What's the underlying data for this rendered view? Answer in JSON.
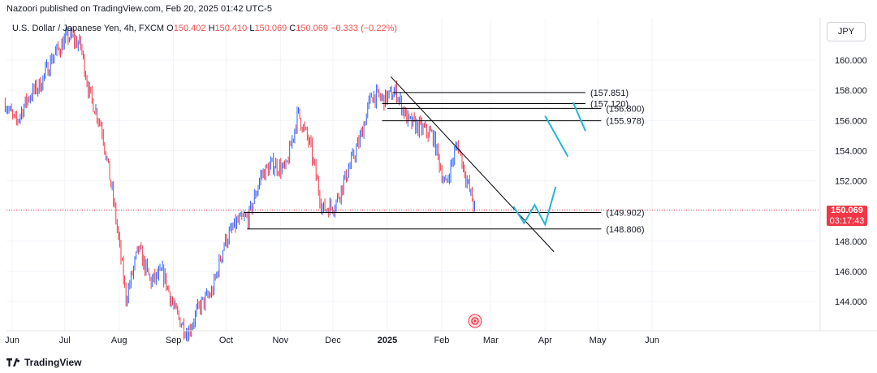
{
  "header": {
    "publisher_line": "Nazoori published on TradingView.com, Feb 20, 2025 01:42 UTC-5"
  },
  "symbol": {
    "name": "U.S. Dollar / Japanese Yen, 4h, FXCM",
    "open_label": "O",
    "open": "150.402",
    "high_label": "H",
    "high": "150.410",
    "low_label": "L",
    "low": "150.069",
    "close_label": "C",
    "close": "150.069",
    "change": "−0.333 (−0.22%)"
  },
  "currency_button": "JPY",
  "last_price": {
    "price": "150.069",
    "countdown": "03:17:43"
  },
  "footer": {
    "brand": "TradingView"
  },
  "colors": {
    "up": "#2962ff",
    "down": "#f23645",
    "pattern": "#22b7d6",
    "trendline": "#000000",
    "last_price_line": "#f23645"
  },
  "icons": {
    "logo": "tradingview-logo-icon",
    "event": "event-marker-icon"
  },
  "chart_data": {
    "type": "line",
    "title": "",
    "ylim": [
      142.0,
      162.5
    ],
    "y_ticks": [
      "160.000",
      "158.000",
      "156.000",
      "154.000",
      "152.000",
      "150.000",
      "148.000",
      "146.000",
      "144.000"
    ],
    "x_labels": [
      {
        "label": "Jun",
        "bold": false
      },
      {
        "label": "Jul",
        "bold": false
      },
      {
        "label": "Aug",
        "bold": false
      },
      {
        "label": "Sep",
        "bold": false
      },
      {
        "label": "Oct",
        "bold": false
      },
      {
        "label": "Nov",
        "bold": false
      },
      {
        "label": "Dec",
        "bold": false
      },
      {
        "label": "2025",
        "bold": true
      },
      {
        "label": "Feb",
        "bold": false
      },
      {
        "label": "Mar",
        "bold": false
      },
      {
        "label": "Apr",
        "bold": false
      },
      {
        "label": "May",
        "bold": false
      },
      {
        "label": "Jun",
        "bold": false
      }
    ],
    "series": [
      {
        "x": [
          "2024-05-28",
          "2024-06-03",
          "2024-06-10",
          "2024-06-17",
          "2024-06-24",
          "2024-07-03",
          "2024-07-10",
          "2024-07-15",
          "2024-07-22",
          "2024-07-29",
          "2024-08-05",
          "2024-08-12",
          "2024-08-19",
          "2024-08-26",
          "2024-09-02",
          "2024-09-09",
          "2024-09-16",
          "2024-09-23",
          "2024-09-30",
          "2024-10-07",
          "2024-10-14",
          "2024-10-21",
          "2024-10-28",
          "2024-11-04",
          "2024-11-11",
          "2024-11-18",
          "2024-11-25",
          "2024-12-02",
          "2024-12-09",
          "2024-12-16",
          "2024-12-23",
          "2024-12-30",
          "2025-01-06",
          "2025-01-13",
          "2025-01-20",
          "2025-01-27",
          "2025-02-03",
          "2025-02-10",
          "2025-02-17",
          "2025-02-20"
        ],
        "y": [
          157.2,
          155.8,
          157.5,
          158.4,
          160.2,
          161.6,
          161.0,
          157.8,
          155.6,
          150.5,
          144.2,
          147.5,
          145.3,
          145.9,
          143.3,
          141.9,
          143.7,
          144.6,
          147.9,
          149.2,
          149.6,
          152.4,
          153.1,
          152.7,
          156.5,
          154.3,
          150.1,
          150.4,
          152.5,
          154.6,
          157.7,
          157.4,
          157.9,
          155.9,
          155.5,
          155.0,
          151.6,
          154.5,
          151.3,
          150.07
        ]
      }
    ],
    "levels": [
      {
        "label": "(157.851)",
        "value": 157.851
      },
      {
        "label": "(157.120)",
        "value": 157.12
      },
      {
        "label": "(156.800)",
        "value": 156.8
      },
      {
        "label": "(155.978)",
        "value": 155.978
      },
      {
        "label": "(149.902)",
        "value": 149.902
      },
      {
        "label": "(148.806)",
        "value": 148.806
      }
    ],
    "trendline": {
      "from": [
        "2025-01-03",
        158.9
      ],
      "to": [
        "2025-04-06",
        147.3
      ]
    },
    "projection_paths": [
      {
        "points": [
          [
            "2025-03-14",
            150.3
          ],
          [
            "2025-03-20",
            149.2
          ],
          [
            "2025-03-26",
            150.4
          ],
          [
            "2025-04-01",
            149.1
          ],
          [
            "2025-04-07",
            151.6
          ]
        ]
      },
      {
        "points": [
          [
            "2025-04-01",
            156.3
          ],
          [
            "2025-04-14",
            153.6
          ]
        ]
      },
      {
        "points": [
          [
            "2025-04-17",
            157.2
          ],
          [
            "2025-04-24",
            155.3
          ]
        ]
      }
    ],
    "last_price": 150.069,
    "grid": true
  }
}
